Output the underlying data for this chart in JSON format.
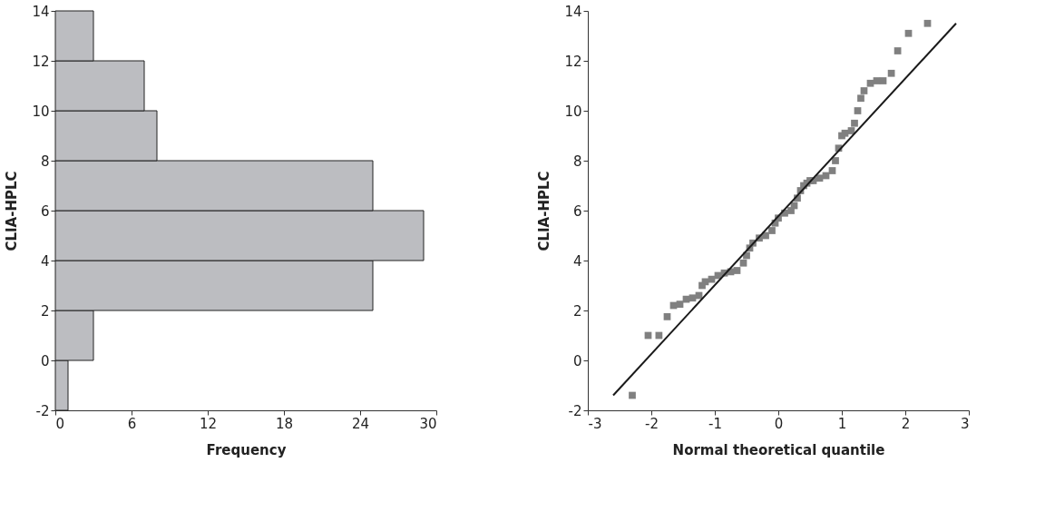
{
  "chart_data": [
    {
      "type": "histogram",
      "orientation": "horizontal",
      "xlabel": "Frequency",
      "ylabel": "CLIA-HPLC",
      "bins": [
        -2,
        0,
        2,
        4,
        6,
        8,
        10,
        12,
        14
      ],
      "values": [
        1,
        3,
        25,
        29,
        25,
        8,
        7,
        3
      ],
      "color": "#bcbdc1",
      "xlim": [
        0,
        30
      ],
      "xticks": [
        0,
        6,
        12,
        18,
        24,
        30
      ],
      "ylim": [
        -2,
        14
      ],
      "yticks": [
        -2,
        0,
        2,
        4,
        6,
        8,
        10,
        12,
        14
      ],
      "grid": false
    },
    {
      "type": "scatter",
      "xlabel": "Normal theoretical quantile",
      "ylabel": "CLIA-HPLC",
      "xlim": [
        -3,
        3
      ],
      "xticks": [
        -3,
        -2,
        -1,
        0,
        1,
        2,
        3
      ],
      "ylim": [
        -2,
        14
      ],
      "yticks": [
        -2,
        0,
        2,
        4,
        6,
        8,
        10,
        12,
        14
      ],
      "grid": false,
      "series": [
        {
          "type": "scatter",
          "marker": "square",
          "color": "#808080",
          "x": [
            -2.3,
            -2.05,
            -1.88,
            -1.75,
            -1.65,
            -1.55,
            -1.45,
            -1.35,
            -1.25,
            -1.2,
            -1.15,
            -1.05,
            -0.95,
            -0.85,
            -0.75,
            -0.65,
            -0.55,
            -0.5,
            -0.45,
            -0.4,
            -0.3,
            -0.2,
            -0.1,
            -0.05,
            0.0,
            0.1,
            0.2,
            0.25,
            0.3,
            0.35,
            0.4,
            0.45,
            0.5,
            0.55,
            0.65,
            0.75,
            0.85,
            0.9,
            0.95,
            1.0,
            1.05,
            1.15,
            1.2,
            1.25,
            1.3,
            1.35,
            1.45,
            1.55,
            1.65,
            1.78,
            1.88,
            2.05,
            2.35
          ],
          "values": [
            -1.4,
            1.0,
            1.0,
            1.75,
            2.2,
            2.25,
            2.45,
            2.5,
            2.6,
            3.0,
            3.15,
            3.25,
            3.4,
            3.5,
            3.55,
            3.6,
            3.9,
            4.2,
            4.5,
            4.7,
            4.9,
            5.0,
            5.2,
            5.5,
            5.7,
            5.9,
            6.0,
            6.2,
            6.5,
            6.8,
            7.0,
            7.1,
            7.2,
            7.2,
            7.3,
            7.4,
            7.6,
            8.0,
            8.5,
            9.0,
            9.1,
            9.2,
            9.5,
            10.0,
            10.5,
            10.8,
            11.1,
            11.2,
            11.2,
            11.5,
            12.4,
            13.1,
            13.5
          ]
        },
        {
          "type": "line",
          "marker": "none",
          "color": "#1a1a1a",
          "x": [
            -2.6,
            2.8
          ],
          "values": [
            -1.4,
            13.5
          ]
        }
      ]
    }
  ]
}
